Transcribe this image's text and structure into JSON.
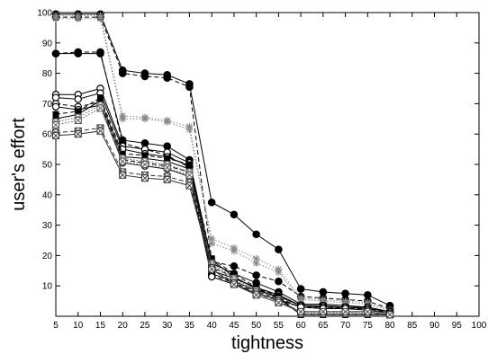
{
  "chart_data": {
    "type": "line",
    "title": "",
    "xlabel": "tightness",
    "ylabel": "user's effort",
    "xlim": [
      5,
      100
    ],
    "ylim": [
      0,
      100
    ],
    "xticks": [
      5,
      10,
      15,
      20,
      25,
      30,
      35,
      40,
      45,
      50,
      55,
      60,
      65,
      70,
      75,
      80,
      85,
      90,
      95,
      100
    ],
    "yticks": [
      10,
      20,
      30,
      40,
      50,
      60,
      70,
      80,
      90,
      100
    ],
    "grid": false,
    "legend": "none",
    "x": [
      5,
      10,
      15,
      20,
      25,
      30,
      35,
      40,
      45,
      50,
      55,
      60,
      65,
      70,
      75,
      80
    ],
    "series": [
      {
        "marker": "circle-filled",
        "style": "solid",
        "color": "#000000",
        "values": [
          99.5,
          99.5,
          99.5,
          81,
          80,
          79.5,
          76.5,
          37.5,
          33.5,
          27,
          22,
          9,
          8,
          7.5,
          7,
          3.5
        ]
      },
      {
        "marker": "circle-filled",
        "style": "dashed",
        "color": "#000000",
        "values": [
          98.5,
          98.5,
          98.5,
          80,
          79,
          78.5,
          75.5,
          18,
          16.5,
          13.5,
          11.5,
          6.5,
          6,
          5.5,
          5,
          2.5
        ]
      },
      {
        "marker": "circle-filled",
        "style": "solid",
        "color": "#000000",
        "values": [
          86.5,
          86.5,
          86.5,
          58,
          57,
          56,
          51.5,
          17.5,
          14,
          11,
          8,
          4,
          4,
          3.5,
          3,
          1.5
        ]
      },
      {
        "marker": "circle-filled",
        "style": "dashed",
        "color": "#000000",
        "values": [
          86.5,
          87,
          87,
          57,
          55,
          53,
          49,
          16,
          13,
          9,
          7,
          3.5,
          3,
          3,
          2.5,
          1.5
        ]
      },
      {
        "marker": "asterisk",
        "style": "dotted",
        "color": "#888888",
        "values": [
          99,
          99,
          99,
          66,
          65.5,
          64.5,
          62.5,
          25.5,
          22.5,
          19,
          15.5,
          6,
          5.5,
          5,
          4.5,
          2
        ]
      },
      {
        "marker": "asterisk",
        "style": "dotted",
        "color": "#888888",
        "values": [
          98,
          98,
          98,
          65,
          65,
          64,
          61.5,
          24,
          21.5,
          17.5,
          14.5,
          5.5,
          5,
          4.5,
          4,
          2
        ]
      },
      {
        "marker": "circle-open",
        "style": "solid",
        "color": "#000000",
        "values": [
          73,
          73,
          75,
          56,
          55,
          54,
          50.5,
          15,
          12.5,
          9.5,
          7,
          3.5,
          3.5,
          3,
          3,
          1.5
        ]
      },
      {
        "marker": "circle-open",
        "style": "solid",
        "color": "#000000",
        "values": [
          72,
          71.5,
          73.5,
          55,
          53.5,
          52.5,
          49.5,
          14,
          11.5,
          8.5,
          6.5,
          3.5,
          3,
          3,
          2.5,
          1.5
        ]
      },
      {
        "marker": "circle-open",
        "style": "dashed",
        "color": "#000000",
        "values": [
          70,
          69,
          70.5,
          51.5,
          50.5,
          49.5,
          47.5,
          13.5,
          11,
          8,
          6,
          3,
          3,
          2.5,
          2.5,
          1
        ]
      },
      {
        "marker": "circle-open",
        "style": "solid",
        "color": "#000000",
        "values": [
          69,
          68,
          69.5,
          50.5,
          49.5,
          48.5,
          46,
          13,
          10.5,
          7.5,
          5.5,
          3,
          2.5,
          2.5,
          2,
          1
        ]
      },
      {
        "marker": "square-filled",
        "style": "dashed",
        "color": "#000000",
        "values": [
          66.5,
          67.5,
          72,
          53.5,
          53,
          52,
          50,
          19,
          14,
          9.5,
          6.5,
          0.5,
          0.5,
          0.5,
          0.5,
          0.5
        ]
      },
      {
        "marker": "square-filled",
        "style": "solid",
        "color": "#000000",
        "values": [
          65,
          66.5,
          71,
          52.5,
          52,
          51,
          48.5,
          18.5,
          13,
          9,
          6,
          0.5,
          0.5,
          0.5,
          0.5,
          0.5
        ]
      },
      {
        "marker": "square-crossed",
        "style": "dotted",
        "color": "#555555",
        "values": [
          64,
          65.5,
          69.5,
          52,
          51,
          50,
          47.5,
          17.5,
          12.5,
          8.5,
          5.5,
          1,
          1,
          1,
          1,
          0.5
        ]
      },
      {
        "marker": "square-crossed",
        "style": "dotted",
        "color": "#555555",
        "values": [
          63,
          64.5,
          68.5,
          51,
          50,
          49,
          46.5,
          17,
          12,
          8,
          5,
          1,
          1,
          1,
          1,
          0.5
        ]
      },
      {
        "marker": "square-crossed",
        "style": "dashed",
        "color": "#333333",
        "values": [
          60.5,
          61,
          62,
          47.5,
          46.5,
          46,
          44,
          16,
          11,
          7.5,
          5,
          1.5,
          1.5,
          1.5,
          1.5,
          0.5
        ]
      },
      {
        "marker": "square-crossed",
        "style": "solid",
        "color": "#333333",
        "values": [
          59.5,
          60,
          61,
          46.5,
          45.5,
          45,
          43,
          15.5,
          10.5,
          7,
          4.5,
          1.5,
          1.5,
          1.5,
          1.5,
          0.5
        ]
      }
    ]
  }
}
